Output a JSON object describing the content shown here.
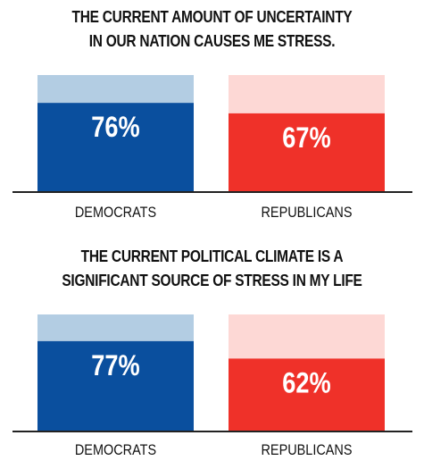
{
  "chart_data": [
    {
      "type": "bar",
      "title": [
        "THE CURRENT AMOUNT OF UNCERTAINTY",
        "IN OUR NATION CAUSES ME STRESS."
      ],
      "categories": [
        "DEMOCRATS",
        "REPUBLICANS"
      ],
      "values": [
        76,
        67
      ],
      "data_labels": [
        "76%",
        "67%"
      ],
      "ylim": [
        0,
        100
      ],
      "colors": {
        "bar": [
          "#0a4f9e",
          "#ef3129"
        ],
        "background": [
          "#b3cde3",
          "#fdd8d5"
        ]
      }
    },
    {
      "type": "bar",
      "title": [
        "THE CURRENT POLITICAL CLIMATE IS A",
        "SIGNIFICANT SOURCE OF STRESS IN MY LIFE"
      ],
      "categories": [
        "DEMOCRATS",
        "REPUBLICANS"
      ],
      "values": [
        77,
        62
      ],
      "data_labels": [
        "77%",
        "62%"
      ],
      "ylim": [
        0,
        100
      ],
      "colors": {
        "bar": [
          "#0a4f9e",
          "#ef3129"
        ],
        "background": [
          "#b3cde3",
          "#fdd8d5"
        ]
      }
    }
  ]
}
